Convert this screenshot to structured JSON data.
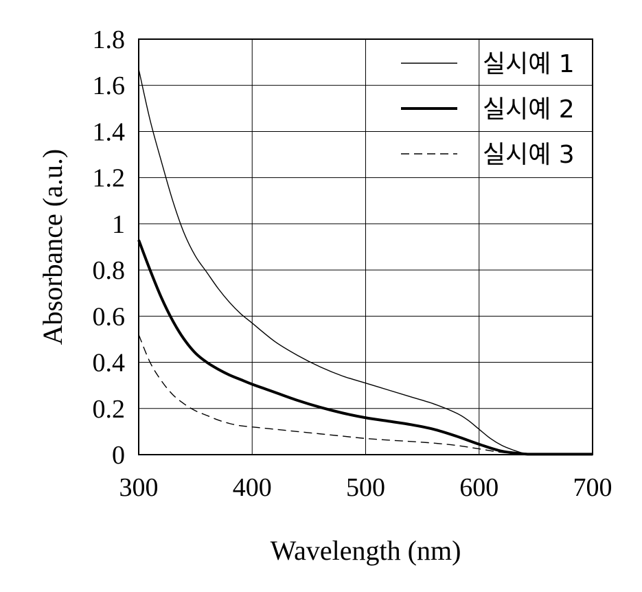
{
  "chart_data": {
    "type": "line",
    "xlabel": "Wavelength (nm)",
    "ylabel": "Absorbance (a.u.)",
    "xlim": [
      300,
      700
    ],
    "ylim": [
      0,
      1.8
    ],
    "xticks": [
      "300",
      "400",
      "500",
      "600",
      "700"
    ],
    "yticks": [
      "0",
      "0.2",
      "0.4",
      "0.6",
      "0.8",
      "1",
      "1.2",
      "1.4",
      "1.6",
      "1.8"
    ],
    "grid": true,
    "legend_position": "top-right",
    "series": [
      {
        "name": "실시예 1",
        "style": "thin-solid",
        "color": "#000000",
        "x": [
          300,
          310,
          320,
          330,
          340,
          350,
          360,
          370,
          380,
          390,
          400,
          420,
          440,
          460,
          480,
          500,
          520,
          540,
          560,
          580,
          590,
          600,
          610,
          620,
          630,
          640,
          650,
          700
        ],
        "y": [
          1.67,
          1.45,
          1.27,
          1.1,
          0.96,
          0.86,
          0.79,
          0.72,
          0.66,
          0.61,
          0.57,
          0.49,
          0.43,
          0.38,
          0.34,
          0.31,
          0.28,
          0.25,
          0.22,
          0.18,
          0.15,
          0.11,
          0.07,
          0.04,
          0.02,
          0.005,
          0.002,
          0.002
        ]
      },
      {
        "name": "실시예 2",
        "style": "thick-solid",
        "color": "#000000",
        "x": [
          300,
          310,
          320,
          330,
          340,
          350,
          360,
          370,
          380,
          390,
          400,
          420,
          440,
          460,
          480,
          500,
          520,
          540,
          560,
          580,
          600,
          620,
          640,
          650,
          700
        ],
        "y": [
          0.93,
          0.8,
          0.68,
          0.58,
          0.5,
          0.44,
          0.4,
          0.37,
          0.345,
          0.325,
          0.305,
          0.27,
          0.235,
          0.205,
          0.18,
          0.16,
          0.145,
          0.13,
          0.11,
          0.08,
          0.045,
          0.015,
          0.003,
          0.002,
          0.002
        ]
      },
      {
        "name": "실시예 3",
        "style": "dashed",
        "color": "#000000",
        "x": [
          300,
          310,
          320,
          330,
          340,
          350,
          360,
          370,
          380,
          390,
          400,
          420,
          440,
          460,
          480,
          500,
          520,
          540,
          560,
          580,
          600,
          620,
          640,
          700
        ],
        "y": [
          0.52,
          0.4,
          0.32,
          0.26,
          0.22,
          0.19,
          0.17,
          0.15,
          0.135,
          0.125,
          0.12,
          0.11,
          0.1,
          0.09,
          0.08,
          0.07,
          0.063,
          0.057,
          0.05,
          0.04,
          0.025,
          0.01,
          0.003,
          0.002
        ]
      }
    ]
  }
}
